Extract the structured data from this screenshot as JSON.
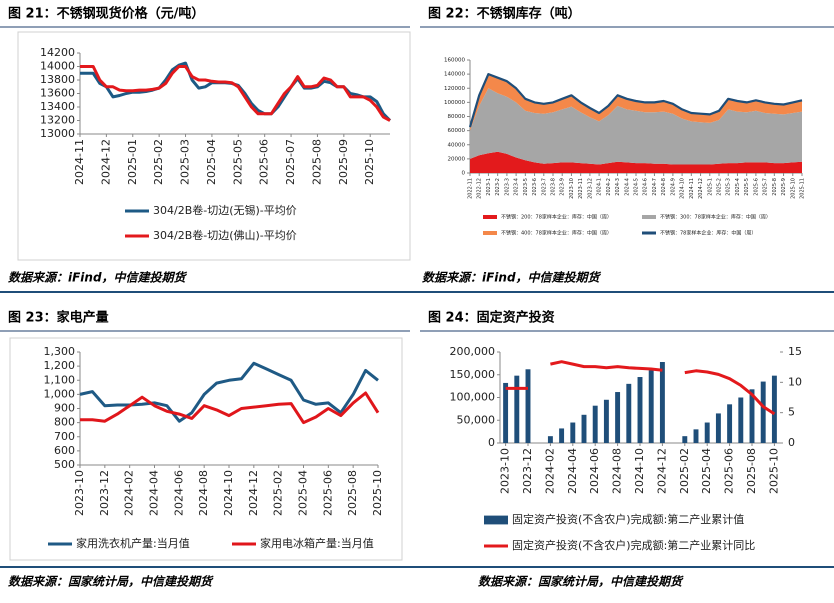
{
  "chart_data": [
    {
      "type": "line",
      "title": "图 21：不锈钢现货价格（元/吨）",
      "source": "数据来源：iFind，中信建投期货",
      "categories": [
        "2024-11",
        null,
        null,
        null,
        "2024-12",
        null,
        null,
        null,
        "2025-01",
        null,
        null,
        null,
        "2025-02",
        null,
        null,
        null,
        "2025-03",
        null,
        null,
        null,
        "2025-04",
        null,
        null,
        null,
        "2025-05",
        null,
        null,
        null,
        "2025-06",
        null,
        null,
        null,
        "2025-07",
        null,
        null,
        null,
        "2025-08",
        null,
        null,
        null,
        "2025-09",
        null,
        null,
        null,
        "2025-10",
        null,
        null,
        null
      ],
      "series": [
        {
          "name": "304/2B卷-切边(无锡)-平均价",
          "color": "#1d5a85",
          "values": [
            13900,
            13900,
            13900,
            13750,
            13700,
            13550,
            13570,
            13600,
            13620,
            13620,
            13630,
            13650,
            13680,
            13800,
            13950,
            14020,
            14050,
            13800,
            13680,
            13700,
            13760,
            13760,
            13760,
            13750,
            13720,
            13600,
            13450,
            13350,
            13300,
            13300,
            13400,
            13550,
            13700,
            13820,
            13680,
            13680,
            13700,
            13780,
            13760,
            13700,
            13700,
            13600,
            13580,
            13550,
            13550,
            13480,
            13300,
            13200
          ]
        },
        {
          "name": "304/2B卷-切边(佛山)-平均价",
          "color": "#e3191c",
          "values": [
            14000,
            14000,
            14000,
            13800,
            13700,
            13700,
            13650,
            13640,
            13640,
            13650,
            13650,
            13660,
            13680,
            13750,
            13900,
            14000,
            14000,
            13850,
            13800,
            13800,
            13780,
            13770,
            13770,
            13760,
            13700,
            13550,
            13400,
            13300,
            13300,
            13300,
            13450,
            13600,
            13700,
            13850,
            13700,
            13700,
            13720,
            13830,
            13800,
            13700,
            13700,
            13550,
            13550,
            13550,
            13500,
            13400,
            13250,
            13200
          ]
        }
      ],
      "ylim": [
        13000,
        14200
      ],
      "yticks": [
        13000,
        13200,
        13400,
        13600,
        13800,
        14000,
        14200
      ],
      "grid": false,
      "legend": "bottom"
    },
    {
      "type": "area",
      "stacked": true,
      "title": "图 22：不锈钢库存（吨）",
      "source": "数据来源：iFind，中信建投期货",
      "categories": [
        "2022-11",
        "2022-12",
        "2023-1",
        "2023-2",
        "2023-3",
        "2023-4",
        "2023-5",
        "2023-6",
        "2023-7",
        "2023-8",
        "2023-9",
        "2023-10",
        "2023-11",
        "2023-12",
        "2024-1",
        "2024-2",
        "2024-3",
        "2024-4",
        "2024-5",
        "2024-6",
        "2024-7",
        "2024-8",
        "2024-9",
        "2024-10",
        "2024-11",
        "2024-12",
        "2025-1",
        "2025-2",
        "2025-3",
        "2025-4",
        "2025-5",
        "2025-6",
        "2025-7",
        "2025-8",
        "2025-9",
        "2025-10",
        "2025-11"
      ],
      "series": [
        {
          "name": "不锈钢：200：78家样本企业：库存：中国（周）",
          "color": "#e31a1c",
          "values": [
            20000,
            25000,
            28000,
            30000,
            27000,
            22000,
            18000,
            15000,
            13000,
            14000,
            15000,
            15000,
            14000,
            13000,
            12000,
            14000,
            16000,
            15000,
            14000,
            14000,
            13000,
            13000,
            12000,
            12000,
            12000,
            12000,
            12000,
            13000,
            14000,
            14000,
            15000,
            15000,
            15000,
            14000,
            14000,
            15000,
            16000
          ]
        },
        {
          "name": "不锈钢：300：78家样本企业：库存：中国（周）",
          "color": "#a6a6a6",
          "values": [
            40000,
            70000,
            92000,
            83000,
            81000,
            78000,
            70000,
            70000,
            71000,
            72000,
            75000,
            79000,
            72000,
            66000,
            61000,
            68000,
            79000,
            75000,
            74000,
            72000,
            73000,
            74000,
            72000,
            65000,
            61000,
            60000,
            59000,
            62000,
            76000,
            73000,
            71000,
            73000,
            70000,
            70000,
            69000,
            70000,
            71000
          ]
        },
        {
          "name": "不锈钢：400：78家样本企业：库存：中国（周）",
          "color": "#f4884a",
          "values": [
            5000,
            15000,
            20000,
            22000,
            22000,
            20000,
            17000,
            15000,
            14000,
            14000,
            15000,
            16000,
            14000,
            13000,
            12000,
            13000,
            15000,
            15000,
            14000,
            14000,
            14000,
            15000,
            14000,
            13000,
            12000,
            12000,
            12000,
            13000,
            15000,
            15000,
            14000,
            15000,
            15000,
            14000,
            14000,
            15000,
            16000
          ]
        },
        {
          "name": "不锈钢：78家样本企业：库存：中国（周）",
          "color": "#1f4e79",
          "type": "line",
          "values": [
            65000,
            110000,
            140000,
            135000,
            130000,
            120000,
            105000,
            100000,
            98000,
            100000,
            105000,
            110000,
            100000,
            92000,
            85000,
            95000,
            110000,
            105000,
            102000,
            100000,
            100000,
            102000,
            98000,
            90000,
            85000,
            84000,
            83000,
            88000,
            105000,
            102000,
            100000,
            103000,
            100000,
            98000,
            97000,
            100000,
            103000
          ]
        }
      ],
      "ylim": [
        0,
        160000
      ],
      "yticks": [
        0,
        20000,
        40000,
        60000,
        80000,
        100000,
        120000,
        140000,
        160000
      ],
      "grid": false,
      "legend": "bottom"
    },
    {
      "type": "line",
      "title": "图 23：家电产量",
      "source": "数据来源：国家统计局，中信建投期货",
      "categories": [
        "2023-10",
        null,
        "2023-12",
        null,
        "2024-02",
        null,
        "2024-04",
        null,
        "2024-06",
        null,
        "2024-08",
        null,
        "2024-10",
        null,
        "2024-12",
        null,
        "2025-02",
        null,
        "2025-04",
        null,
        "2025-06",
        null,
        "2025-08",
        null,
        "2025-10"
      ],
      "series": [
        {
          "name": "家用洗衣机产量:当月值",
          "color": "#1f5a85",
          "values": [
            1000,
            1020,
            920,
            925,
            925,
            930,
            940,
            920,
            810,
            870,
            1000,
            1080,
            1100,
            1110,
            1220,
            1180,
            1140,
            1100,
            960,
            930,
            940,
            870,
            1000,
            1170,
            1100
          ]
        },
        {
          "name": "家用电冰箱产量:当月值",
          "color": "#e0161b",
          "values": [
            820,
            820,
            810,
            860,
            920,
            980,
            920,
            880,
            860,
            830,
            920,
            890,
            850,
            900,
            910,
            920,
            930,
            935,
            800,
            840,
            900,
            850,
            940,
            1010,
            870
          ]
        }
      ],
      "ylim": [
        500,
        1300
      ],
      "yticks": [
        500,
        600,
        700,
        800,
        900,
        {
          "value": 1000,
          "label": "1,000"
        },
        {
          "value": 1100,
          "label": "1,100"
        },
        {
          "value": 1200,
          "label": "1,200"
        },
        {
          "value": 1300,
          "label": "1,300"
        }
      ],
      "grid": false,
      "legend": "bottom"
    },
    {
      "type": "bar",
      "title": "图 24：固定资产投资",
      "source": "数据来源：国家统计局，中信建投期货",
      "categories": [
        "2023-10",
        null,
        "2023-12",
        null,
        "2024-02",
        null,
        "2024-04",
        null,
        "2024-06",
        null,
        "2024-08",
        null,
        "2024-10",
        null,
        "2024-12",
        null,
        "2025-02",
        null,
        "2025-04",
        null,
        "2025-06",
        null,
        "2025-08",
        null,
        "2025-10"
      ],
      "series": [
        {
          "name": "固定资产投资(不含农户)完成额:第二产业累计值",
          "color": "#1f4e79",
          "values": [
            132000,
            148000,
            162000,
            null,
            15000,
            32000,
            45000,
            62000,
            82000,
            95000,
            112000,
            130000,
            145000,
            160000,
            178000,
            null,
            15000,
            30000,
            45000,
            65000,
            85000,
            100000,
            118000,
            135000,
            148000
          ]
        },
        {
          "name": "固定资产投资(不含农户)完成额:第二产业累计同比",
          "color": "#e3191c",
          "type": "line",
          "axis": "y2",
          "values": [
            9.0,
            9.0,
            9.0,
            null,
            13.0,
            13.4,
            13.0,
            12.6,
            12.6,
            12.4,
            12.6,
            12.4,
            12.3,
            12.2,
            12.0,
            null,
            11.6,
            11.9,
            11.7,
            11.3,
            10.6,
            9.5,
            8.0,
            6.0,
            4.8
          ]
        }
      ],
      "ylim": [
        0,
        200000
      ],
      "yticks": [
        0,
        {
          "value": 50000,
          "label": "50,000"
        },
        {
          "value": 100000,
          "label": "100,000"
        },
        {
          "value": 150000,
          "label": "150,000"
        },
        {
          "value": 200000,
          "label": "200,000"
        }
      ],
      "y2lim": [
        0,
        15
      ],
      "y2ticks": [
        0,
        5,
        10,
        15
      ],
      "grid": false,
      "legend": "bottom"
    }
  ]
}
